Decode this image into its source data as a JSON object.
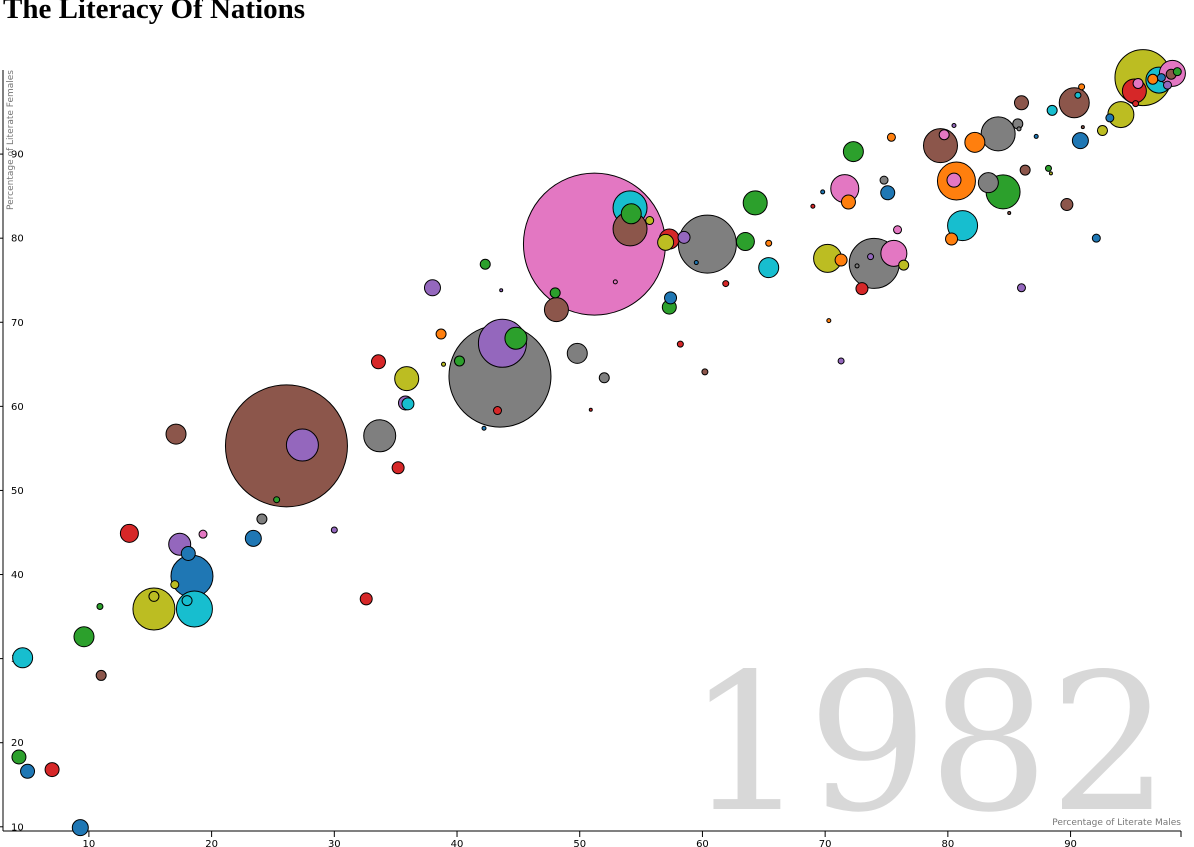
{
  "page": {
    "title": "The Literacy Of Nations"
  },
  "chart_data": {
    "type": "scatter",
    "title": "The Literacy Of Nations",
    "year": "1982",
    "xlabel": "Percentage of Literate Males",
    "ylabel": "Percentage of Literate Females",
    "xlim": [
      3,
      99
    ],
    "ylim": [
      9.5,
      100
    ],
    "x_ticks": [
      "10",
      "20",
      "30",
      "40",
      "50",
      "60",
      "70",
      "80",
      "90"
    ],
    "y_ticks": [
      "10",
      "20",
      "30",
      "40",
      "50",
      "60",
      "70",
      "80",
      "90"
    ],
    "grid": false,
    "colors": {
      "blue": "#1f77b4",
      "orange": "#ff7f0e",
      "green": "#2ca02c",
      "red": "#d62728",
      "purple": "#9467bd",
      "brown": "#8c564b",
      "pink": "#e377c2",
      "gray": "#7f7f7f",
      "olive": "#bcbd22",
      "cyan": "#17becf"
    },
    "points": [
      {
        "x": 51.2,
        "y": 79.3,
        "r": 71,
        "color": "pink"
      },
      {
        "x": 26.1,
        "y": 55.3,
        "r": 61,
        "color": "brown"
      },
      {
        "x": 43.5,
        "y": 63.6,
        "r": 51,
        "color": "gray"
      },
      {
        "x": 95.9,
        "y": 99.1,
        "r": 28,
        "color": "olive"
      },
      {
        "x": 74.0,
        "y": 77.0,
        "r": 25,
        "color": "gray"
      },
      {
        "x": 43.7,
        "y": 67.5,
        "r": 24,
        "color": "purple"
      },
      {
        "x": 60.4,
        "y": 79.3,
        "r": 29,
        "color": "gray"
      },
      {
        "x": 15.3,
        "y": 35.9,
        "r": 21,
        "color": "olive"
      },
      {
        "x": 18.4,
        "y": 39.8,
        "r": 21,
        "color": "blue"
      },
      {
        "x": 18.6,
        "y": 35.9,
        "r": 18,
        "color": "cyan"
      },
      {
        "x": 27.4,
        "y": 55.4,
        "r": 16,
        "color": "purple"
      },
      {
        "x": 54.1,
        "y": 83.6,
        "r": 17,
        "color": "cyan"
      },
      {
        "x": 54.1,
        "y": 81.1,
        "r": 17,
        "color": "brown"
      },
      {
        "x": 54.2,
        "y": 82.9,
        "r": 10,
        "color": "green"
      },
      {
        "x": 79.4,
        "y": 91.0,
        "r": 17,
        "color": "brown"
      },
      {
        "x": 80.7,
        "y": 86.8,
        "r": 19,
        "color": "orange"
      },
      {
        "x": 80.5,
        "y": 86.9,
        "r": 7,
        "color": "pink"
      },
      {
        "x": 84.1,
        "y": 92.4,
        "r": 17,
        "color": "gray"
      },
      {
        "x": 84.5,
        "y": 85.5,
        "r": 17,
        "color": "green"
      },
      {
        "x": 81.2,
        "y": 81.5,
        "r": 15,
        "color": "cyan"
      },
      {
        "x": 90.3,
        "y": 96.1,
        "r": 15,
        "color": "brown"
      },
      {
        "x": 71.6,
        "y": 85.9,
        "r": 14,
        "color": "pink"
      },
      {
        "x": 70.2,
        "y": 77.6,
        "r": 14,
        "color": "olive"
      },
      {
        "x": 75.6,
        "y": 78.2,
        "r": 13,
        "color": "pink"
      },
      {
        "x": 33.7,
        "y": 56.5,
        "r": 16,
        "color": "gray"
      },
      {
        "x": 48.1,
        "y": 71.5,
        "r": 12,
        "color": "brown"
      },
      {
        "x": 35.9,
        "y": 63.3,
        "r": 12,
        "color": "olive"
      },
      {
        "x": 64.3,
        "y": 84.2,
        "r": 12,
        "color": "green"
      },
      {
        "x": 83.3,
        "y": 86.6,
        "r": 10,
        "color": "gray"
      },
      {
        "x": 94.1,
        "y": 94.7,
        "r": 13,
        "color": "olive"
      },
      {
        "x": 97.2,
        "y": 98.8,
        "r": 13,
        "color": "cyan"
      },
      {
        "x": 98.3,
        "y": 99.6,
        "r": 13,
        "color": "pink"
      },
      {
        "x": 17.4,
        "y": 43.6,
        "r": 11,
        "color": "purple"
      },
      {
        "x": 17.1,
        "y": 56.7,
        "r": 10,
        "color": "brown"
      },
      {
        "x": 49.8,
        "y": 66.3,
        "r": 10,
        "color": "gray"
      },
      {
        "x": 72.3,
        "y": 90.3,
        "r": 10,
        "color": "green"
      },
      {
        "x": 82.2,
        "y": 91.4,
        "r": 10,
        "color": "orange"
      },
      {
        "x": 95.2,
        "y": 97.5,
        "r": 12,
        "color": "red"
      },
      {
        "x": 44.8,
        "y": 68.1,
        "r": 11,
        "color": "green"
      },
      {
        "x": 65.4,
        "y": 76.5,
        "r": 10,
        "color": "cyan"
      },
      {
        "x": 57.3,
        "y": 79.9,
        "r": 10,
        "color": "red"
      },
      {
        "x": 63.5,
        "y": 79.6,
        "r": 9,
        "color": "green"
      },
      {
        "x": 13.3,
        "y": 44.9,
        "r": 9,
        "color": "red"
      },
      {
        "x": 9.6,
        "y": 32.6,
        "r": 10,
        "color": "green"
      },
      {
        "x": 4.6,
        "y": 30.1,
        "r": 10,
        "color": "cyan"
      },
      {
        "x": 23.4,
        "y": 44.3,
        "r": 8,
        "color": "blue"
      },
      {
        "x": 57.0,
        "y": 79.5,
        "r": 8,
        "color": "olive"
      },
      {
        "x": 38.0,
        "y": 74.1,
        "r": 8,
        "color": "purple"
      },
      {
        "x": 90.8,
        "y": 91.6,
        "r": 8,
        "color": "blue"
      },
      {
        "x": 86.0,
        "y": 96.1,
        "r": 7,
        "color": "brown"
      },
      {
        "x": 18.1,
        "y": 42.5,
        "r": 7,
        "color": "blue"
      },
      {
        "x": 9.3,
        "y": 9.9,
        "r": 8,
        "color": "blue"
      },
      {
        "x": 4.3,
        "y": 18.3,
        "r": 7,
        "color": "green"
      },
      {
        "x": 7.0,
        "y": 16.8,
        "r": 7,
        "color": "red"
      },
      {
        "x": 5.0,
        "y": 16.6,
        "r": 7,
        "color": "blue"
      },
      {
        "x": 33.6,
        "y": 65.3,
        "r": 7,
        "color": "red"
      },
      {
        "x": 75.1,
        "y": 85.4,
        "r": 7,
        "color": "blue"
      },
      {
        "x": 73.0,
        "y": 74.0,
        "r": 6,
        "color": "red"
      },
      {
        "x": 71.3,
        "y": 77.4,
        "r": 6,
        "color": "orange"
      },
      {
        "x": 71.9,
        "y": 84.3,
        "r": 7,
        "color": "orange"
      },
      {
        "x": 80.3,
        "y": 79.9,
        "r": 6,
        "color": "orange"
      },
      {
        "x": 57.3,
        "y": 71.8,
        "r": 7,
        "color": "green"
      },
      {
        "x": 57.4,
        "y": 72.9,
        "r": 6,
        "color": "blue"
      },
      {
        "x": 35.8,
        "y": 60.4,
        "r": 7,
        "color": "purple"
      },
      {
        "x": 36.0,
        "y": 60.3,
        "r": 6,
        "color": "cyan"
      },
      {
        "x": 32.6,
        "y": 37.1,
        "r": 6,
        "color": "red"
      },
      {
        "x": 35.2,
        "y": 52.7,
        "r": 6,
        "color": "red"
      },
      {
        "x": 15.3,
        "y": 37.4,
        "r": 5,
        "color": "olive"
      },
      {
        "x": 18.0,
        "y": 36.9,
        "r": 5,
        "color": "cyan"
      },
      {
        "x": 24.1,
        "y": 46.6,
        "r": 5,
        "color": "gray"
      },
      {
        "x": 11.0,
        "y": 28.0,
        "r": 5,
        "color": "brown"
      },
      {
        "x": 42.3,
        "y": 76.9,
        "r": 5,
        "color": "green"
      },
      {
        "x": 48.0,
        "y": 73.5,
        "r": 5,
        "color": "green"
      },
      {
        "x": 52.0,
        "y": 63.4,
        "r": 5,
        "color": "gray"
      },
      {
        "x": 38.7,
        "y": 68.6,
        "r": 5,
        "color": "orange"
      },
      {
        "x": 40.2,
        "y": 65.4,
        "r": 5,
        "color": "green"
      },
      {
        "x": 58.5,
        "y": 80.1,
        "r": 6,
        "color": "purple"
      },
      {
        "x": 89.7,
        "y": 84.0,
        "r": 6,
        "color": "brown"
      },
      {
        "x": 85.7,
        "y": 93.6,
        "r": 5,
        "color": "gray"
      },
      {
        "x": 88.5,
        "y": 95.2,
        "r": 5,
        "color": "cyan"
      },
      {
        "x": 76.4,
        "y": 76.8,
        "r": 5,
        "color": "olive"
      },
      {
        "x": 92.6,
        "y": 92.8,
        "r": 5,
        "color": "olive"
      },
      {
        "x": 86.3,
        "y": 88.1,
        "r": 5,
        "color": "brown"
      },
      {
        "x": 79.7,
        "y": 92.3,
        "r": 5,
        "color": "pink"
      },
      {
        "x": 43.3,
        "y": 59.5,
        "r": 4,
        "color": "red"
      },
      {
        "x": 93.2,
        "y": 94.3,
        "r": 4,
        "color": "blue"
      },
      {
        "x": 98.2,
        "y": 99.5,
        "r": 5,
        "color": "brown"
      },
      {
        "x": 96.7,
        "y": 98.9,
        "r": 5,
        "color": "orange"
      },
      {
        "x": 95.5,
        "y": 98.4,
        "r": 5,
        "color": "pink"
      },
      {
        "x": 97.4,
        "y": 99.1,
        "r": 4,
        "color": "blue"
      },
      {
        "x": 98.7,
        "y": 99.8,
        "r": 4,
        "color": "green"
      },
      {
        "x": 97.9,
        "y": 98.2,
        "r": 4,
        "color": "purple"
      },
      {
        "x": 55.7,
        "y": 82.1,
        "r": 4,
        "color": "olive"
      },
      {
        "x": 74.8,
        "y": 86.9,
        "r": 4,
        "color": "gray"
      },
      {
        "x": 75.9,
        "y": 81.0,
        "r": 4,
        "color": "pink"
      },
      {
        "x": 75.4,
        "y": 92.0,
        "r": 4,
        "color": "orange"
      },
      {
        "x": 19.3,
        "y": 44.8,
        "r": 4,
        "color": "pink"
      },
      {
        "x": 25.3,
        "y": 48.9,
        "r": 3,
        "color": "green"
      },
      {
        "x": 17.0,
        "y": 38.8,
        "r": 4,
        "color": "olive"
      },
      {
        "x": 86.0,
        "y": 74.1,
        "r": 4,
        "color": "purple"
      },
      {
        "x": 92.1,
        "y": 80.0,
        "r": 4,
        "color": "blue"
      },
      {
        "x": 88.2,
        "y": 88.3,
        "r": 3,
        "color": "green"
      },
      {
        "x": 61.9,
        "y": 74.6,
        "r": 3,
        "color": "red"
      },
      {
        "x": 65.4,
        "y": 79.4,
        "r": 3,
        "color": "orange"
      },
      {
        "x": 73.7,
        "y": 77.8,
        "r": 3,
        "color": "purple"
      },
      {
        "x": 71.3,
        "y": 65.4,
        "r": 3,
        "color": "purple"
      },
      {
        "x": 58.2,
        "y": 67.4,
        "r": 3,
        "color": "red"
      },
      {
        "x": 60.2,
        "y": 64.1,
        "r": 3,
        "color": "brown"
      },
      {
        "x": 30.0,
        "y": 45.3,
        "r": 3,
        "color": "purple"
      },
      {
        "x": 10.9,
        "y": 36.2,
        "r": 3,
        "color": "green"
      },
      {
        "x": 90.9,
        "y": 98.0,
        "r": 3,
        "color": "orange"
      },
      {
        "x": 90.6,
        "y": 97.0,
        "r": 3,
        "color": "cyan"
      },
      {
        "x": 95.3,
        "y": 96.0,
        "r": 3,
        "color": "red"
      },
      {
        "x": 80.5,
        "y": 93.4,
        "r": 2,
        "color": "purple"
      },
      {
        "x": 87.2,
        "y": 92.1,
        "r": 2,
        "color": "blue"
      },
      {
        "x": 85.8,
        "y": 93.0,
        "r": 2,
        "color": "gray"
      },
      {
        "x": 72.6,
        "y": 76.7,
        "r": 2,
        "color": "gray"
      },
      {
        "x": 69.0,
        "y": 83.8,
        "r": 2,
        "color": "red"
      },
      {
        "x": 69.8,
        "y": 85.5,
        "r": 2,
        "color": "blue"
      },
      {
        "x": 70.3,
        "y": 70.2,
        "r": 2,
        "color": "orange"
      },
      {
        "x": 52.9,
        "y": 74.8,
        "r": 2,
        "color": "pink"
      },
      {
        "x": 59.5,
        "y": 77.1,
        "r": 2,
        "color": "blue"
      },
      {
        "x": 38.9,
        "y": 65.0,
        "r": 2,
        "color": "olive"
      },
      {
        "x": 42.2,
        "y": 57.4,
        "r": 2,
        "color": "blue"
      },
      {
        "x": 43.6,
        "y": 73.8,
        "r": 1.5,
        "color": "purple"
      },
      {
        "x": 50.9,
        "y": 59.6,
        "r": 1.5,
        "color": "red"
      },
      {
        "x": 85.0,
        "y": 83.0,
        "r": 1.5,
        "color": "brown"
      },
      {
        "x": 88.4,
        "y": 87.7,
        "r": 1.5,
        "color": "olive"
      },
      {
        "x": 91.0,
        "y": 93.2,
        "r": 1.5,
        "color": "brown"
      }
    ]
  }
}
